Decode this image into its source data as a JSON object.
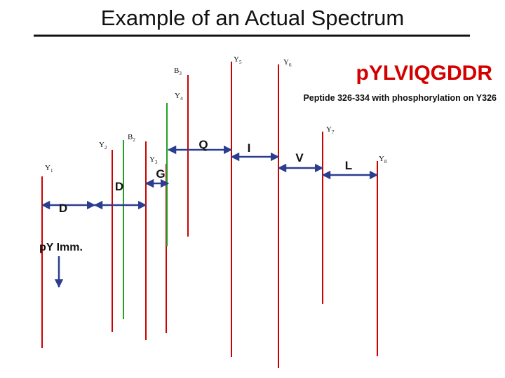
{
  "title": "Example of an Actual Spectrum",
  "sequence": {
    "highlight": "p",
    "mod": "Y",
    "rest": "LVIQGDDR"
  },
  "subtitle": "Peptide 326-334 with phosphorylation on Y326",
  "peaks": [
    {
      "name": "Y1-peak",
      "series": "Y",
      "num": "1",
      "color": "#cc0000",
      "label": "Y"
    },
    {
      "name": "Y2-peak",
      "series": "Y",
      "num": "2",
      "color": "#cc0000",
      "label": "Y"
    },
    {
      "name": "B2-peak",
      "series": "B",
      "num": "2",
      "color": "#cc0000",
      "label": "B"
    },
    {
      "name": "Y3-peak",
      "series": "Y",
      "num": "3",
      "color": "#cc0000",
      "label": "Y"
    },
    {
      "name": "B3-peak",
      "series": "B",
      "num": "3",
      "color": "#cc0000",
      "label": "B"
    },
    {
      "name": "Y4-peak",
      "series": "Y",
      "num": "4",
      "color": "#22a022",
      "label": "Y"
    },
    {
      "name": "Y5-peak",
      "series": "Y",
      "num": "5",
      "color": "#cc0000",
      "label": "Y"
    },
    {
      "name": "Y6-peak",
      "series": "Y",
      "num": "6",
      "color": "#cc0000",
      "label": "Y"
    },
    {
      "name": "Y7-peak",
      "series": "Y",
      "num": "7",
      "color": "#cc0000",
      "label": "Y"
    },
    {
      "name": "Y8-peak",
      "series": "Y",
      "num": "8",
      "color": "#cc0000",
      "label": "Y"
    }
  ],
  "residues": [
    "D",
    "D",
    "G",
    "Q",
    "I",
    "V",
    "L"
  ],
  "immonium_label": "pY Imm."
}
